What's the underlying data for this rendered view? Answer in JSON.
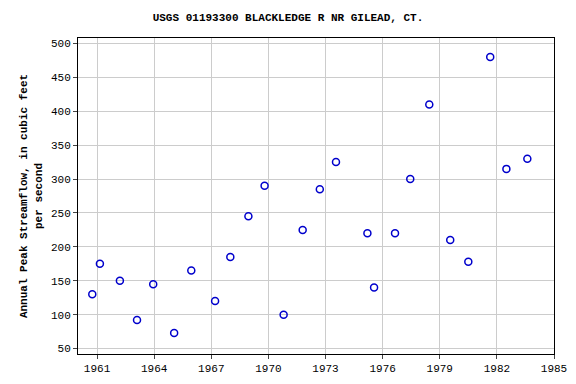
{
  "chart_data": {
    "type": "scatter",
    "title": "USGS 01193300 BLACKLEDGE R NR GILEAD, CT.",
    "y_label": [
      "Annual Peak Streamflow, in cubic feet",
      "per second"
    ],
    "x": [
      1960.75,
      1961.15,
      1962.2,
      1963.1,
      1963.95,
      1965.05,
      1965.95,
      1967.2,
      1968.0,
      1968.95,
      1969.8,
      1970.8,
      1971.8,
      1972.7,
      1973.55,
      1975.2,
      1975.55,
      1976.65,
      1977.45,
      1978.45,
      1979.55,
      1980.5,
      1981.65,
      1982.5,
      1983.6
    ],
    "values": [
      130,
      175,
      150,
      92,
      145,
      73,
      165,
      120,
      185,
      245,
      290,
      100,
      225,
      285,
      325,
      220,
      140,
      220,
      300,
      410,
      210,
      178,
      480,
      315,
      330
    ],
    "color": "#0000cc",
    "marker": "open circle",
    "xlim": [
      1960,
      1985
    ],
    "xticks": [
      1961,
      1964,
      1967,
      1970,
      1973,
      1976,
      1979,
      1982,
      1985
    ],
    "ylim": [
      42,
      508
    ],
    "yticks": [
      50,
      100,
      150,
      200,
      250,
      300,
      350,
      400,
      450,
      500
    ],
    "grid": true
  }
}
